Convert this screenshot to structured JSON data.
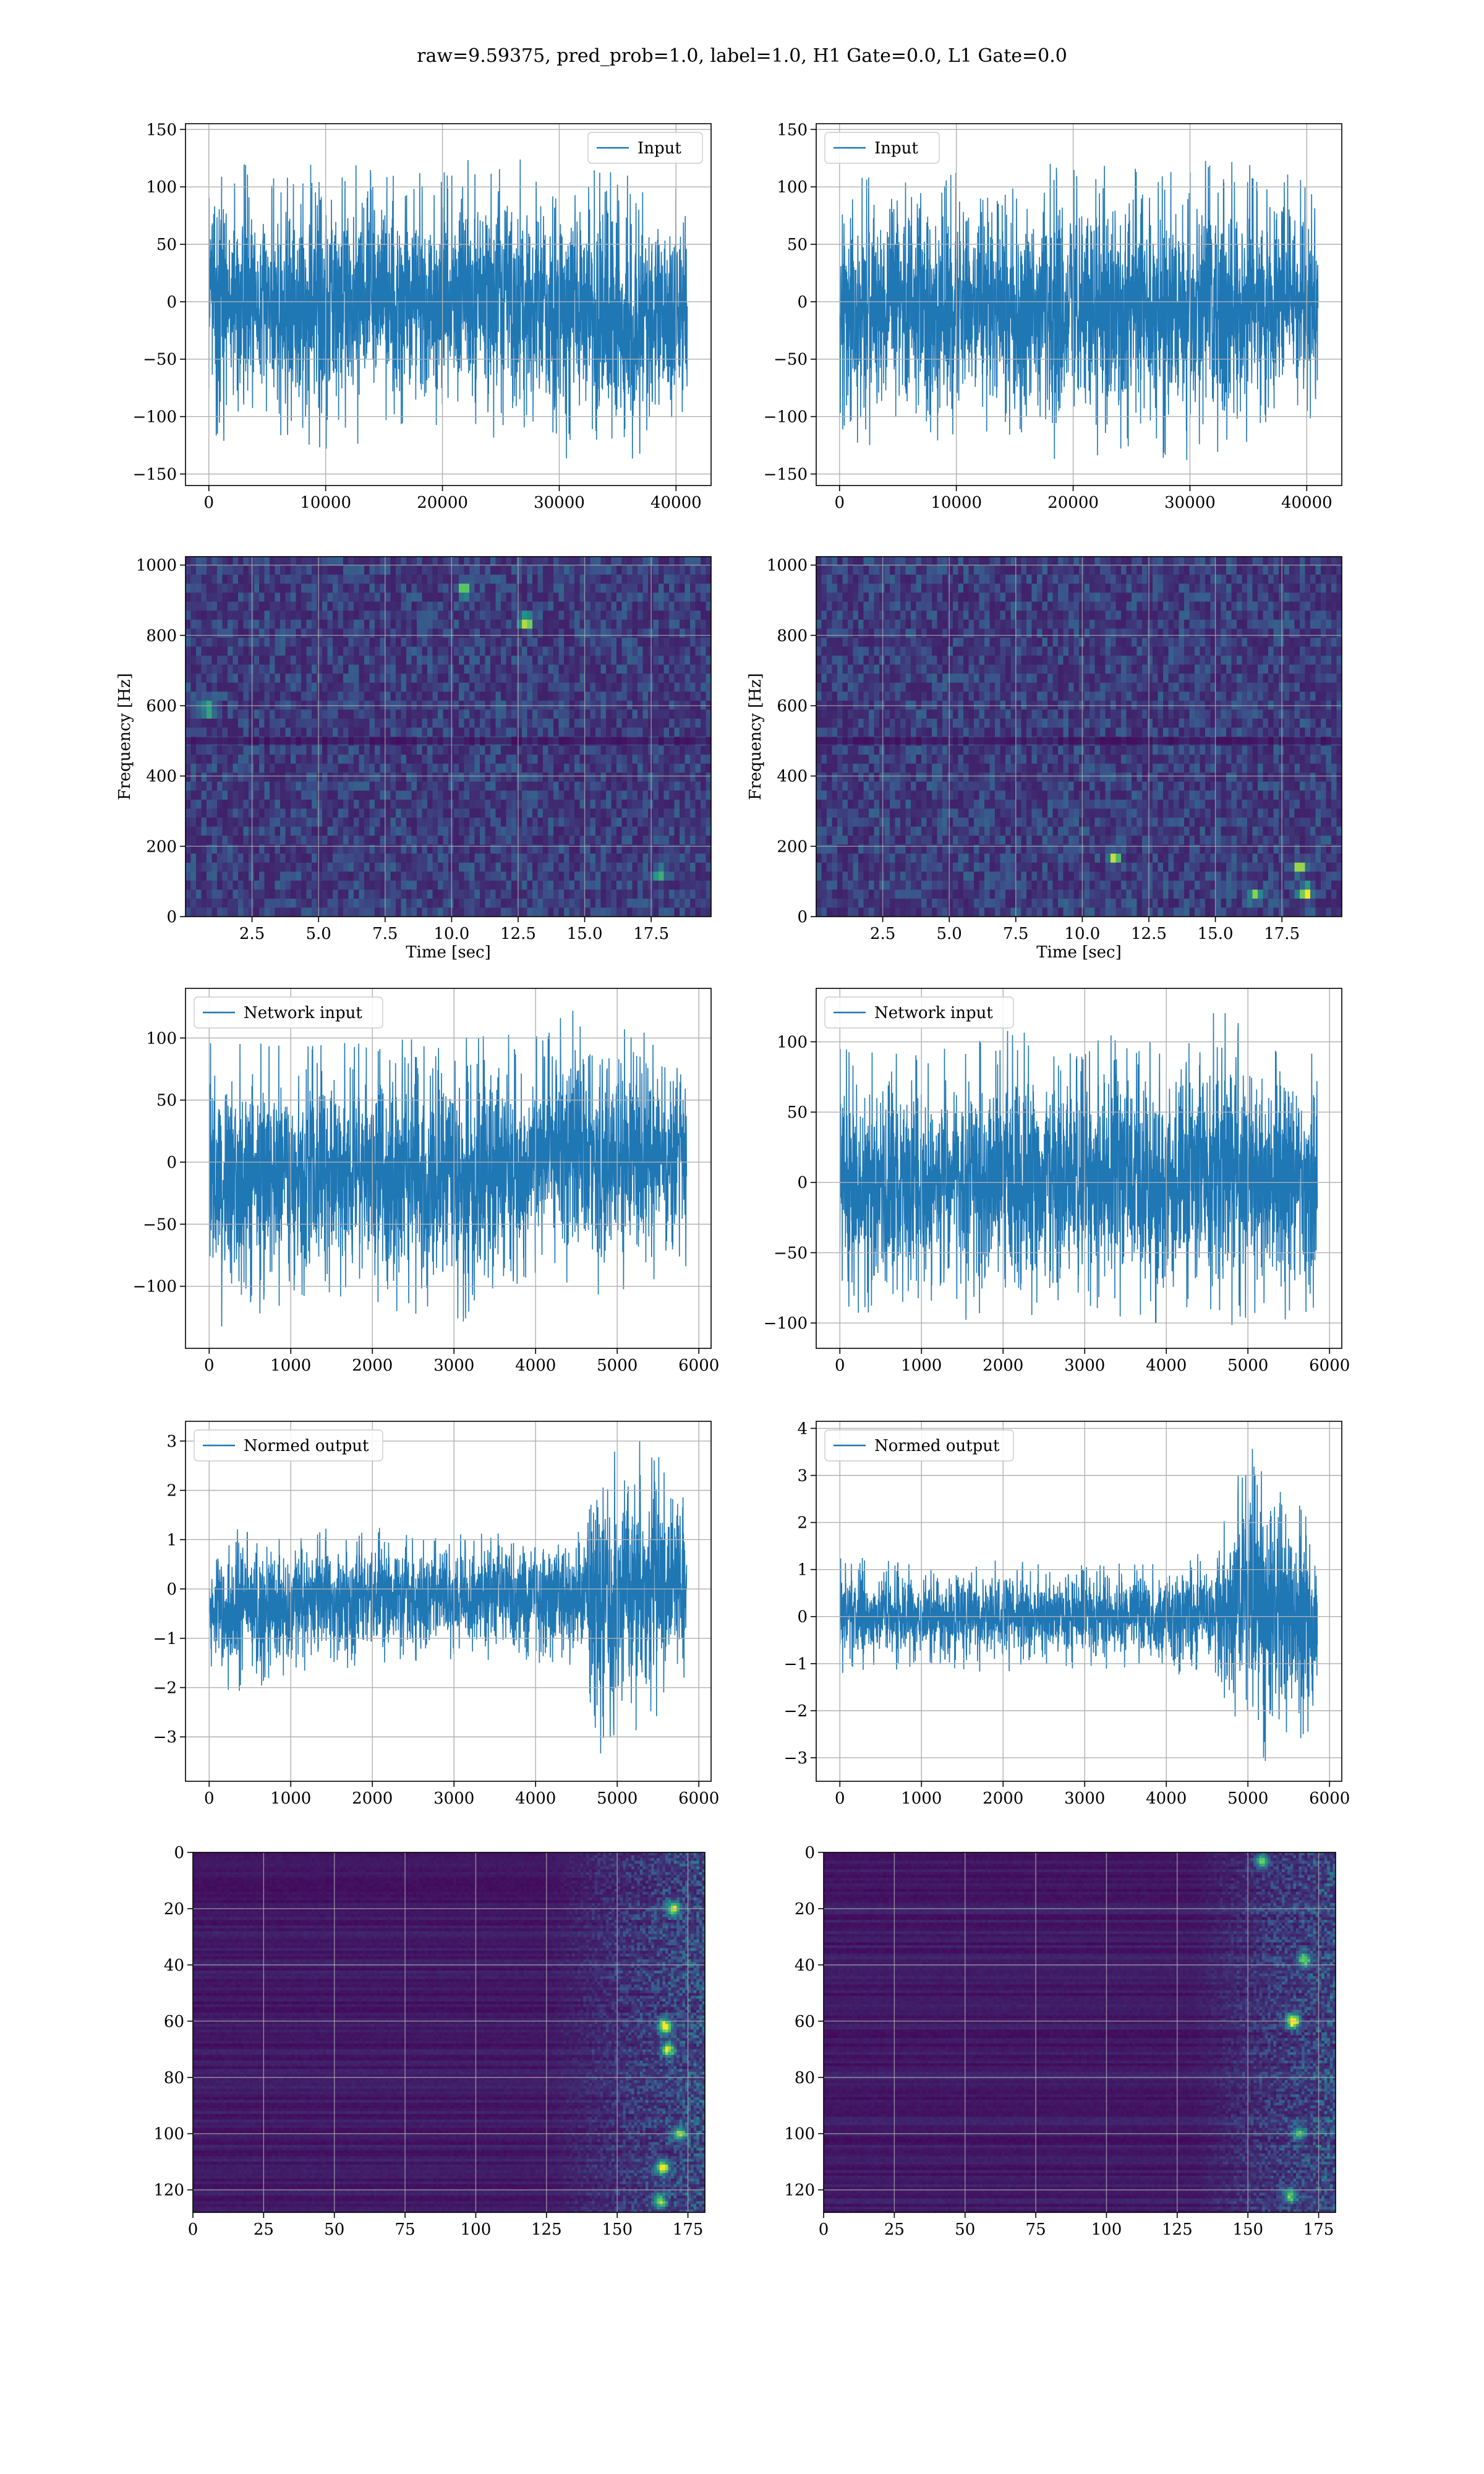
{
  "figure": {
    "suptitle": "raw=9.59375, pred_prob=1.0, label=1.0, H1 Gate=0.0, L1 Gate=0.0"
  },
  "colors": {
    "line": "#1f77b4",
    "grid": "#b0b0b0",
    "viridis_low": "#440154",
    "viridis_mid": "#21918c",
    "viridis_high": "#fde725"
  },
  "chart_data": [
    {
      "id": "h1-input",
      "type": "line",
      "xlabel": "",
      "ylabel": "",
      "legend": "Input",
      "legend_loc": "upper right",
      "grid": true,
      "xlim": [
        -2000,
        43000
      ],
      "ylim": [
        -160,
        155
      ],
      "xticks": [
        0,
        10000,
        20000,
        30000,
        40000
      ],
      "yticks": [
        -150,
        -100,
        -50,
        0,
        50,
        100,
        150
      ],
      "series": [
        {
          "name": "Input",
          "x_range": [
            0,
            40960
          ],
          "n_points": 40960,
          "envelope": {
            "x": [
              0,
              5000,
              10000,
              15000,
              20000,
              25000,
              30000,
              35000,
              40960
            ],
            "upper": [
              134,
              110,
              125,
              120,
              112,
              138,
              118,
              112,
              96
            ],
            "lower": [
              -130,
              -115,
              -128,
              -120,
              -108,
              -122,
              -135,
              -145,
              -105
            ]
          }
        }
      ]
    },
    {
      "id": "l1-input",
      "type": "line",
      "xlabel": "",
      "ylabel": "",
      "legend": "Input",
      "legend_loc": "upper left",
      "grid": true,
      "xlim": [
        -2000,
        43000
      ],
      "ylim": [
        -160,
        155
      ],
      "xticks": [
        0,
        10000,
        20000,
        30000,
        40000
      ],
      "yticks": [
        -150,
        -100,
        -50,
        0,
        50,
        100,
        150
      ],
      "series": [
        {
          "name": "Input",
          "x_range": [
            0,
            40960
          ],
          "n_points": 40960,
          "envelope": {
            "x": [
              0,
              5000,
              10000,
              15000,
              20000,
              25000,
              30000,
              35000,
              40960
            ],
            "upper": [
              115,
              120,
              116,
              118,
              122,
              115,
              126,
              120,
              105
            ],
            "lower": [
              -132,
              -118,
              -122,
              -130,
              -140,
              -125,
              -145,
              -128,
              -110
            ]
          }
        }
      ]
    },
    {
      "id": "h1-spectrogram",
      "type": "heatmap",
      "xlabel": "Time [sec]",
      "ylabel": "Frequency [Hz]",
      "grid": true,
      "xlim": [
        0,
        19.75
      ],
      "ylim": [
        0,
        1024
      ],
      "xticks": [
        2.5,
        5.0,
        7.5,
        10.0,
        12.5,
        15.0,
        17.5
      ],
      "yticks": [
        0,
        200,
        400,
        600,
        800,
        1000
      ],
      "colormap": "viridis",
      "rows": 40,
      "cols": 100,
      "seed": 3,
      "hotspots": [
        [
          12.8,
          840,
          0.9
        ],
        [
          10.5,
          930,
          0.7
        ],
        [
          17.8,
          120,
          0.55
        ],
        [
          0.8,
          590,
          0.55
        ]
      ]
    },
    {
      "id": "l1-spectrogram",
      "type": "heatmap",
      "xlabel": "Time [sec]",
      "ylabel": "Frequency [Hz]",
      "grid": true,
      "xlim": [
        0,
        19.75
      ],
      "ylim": [
        0,
        1024
      ],
      "xticks": [
        2.5,
        5.0,
        7.5,
        10.0,
        12.5,
        15.0,
        17.5
      ],
      "yticks": [
        0,
        200,
        400,
        600,
        800,
        1000
      ],
      "colormap": "viridis",
      "rows": 40,
      "cols": 100,
      "seed": 7,
      "hotspots": [
        [
          18.4,
          70,
          1.0
        ],
        [
          18.2,
          140,
          0.8
        ],
        [
          11.2,
          170,
          0.7
        ],
        [
          16.5,
          60,
          0.6
        ]
      ]
    },
    {
      "id": "h1-network-input",
      "type": "line",
      "xlabel": "",
      "ylabel": "",
      "legend": "Network input",
      "legend_loc": "upper left",
      "grid": true,
      "xlim": [
        -290,
        6150
      ],
      "ylim": [
        -150,
        140
      ],
      "xticks": [
        0,
        1000,
        2000,
        3000,
        4000,
        5000,
        6000
      ],
      "yticks": [
        -100,
        -50,
        0,
        50,
        100
      ],
      "series": [
        {
          "name": "Network input",
          "x_range": [
            0,
            5850
          ],
          "n_points": 5850,
          "envelope": {
            "x": [
              0,
              1000,
              2000,
              3000,
              4000,
              4500,
              5000,
              5850
            ],
            "upper": [
              105,
              92,
              98,
              100,
              104,
              124,
              110,
              95
            ],
            "lower": [
              -138,
              -112,
              -115,
              -132,
              -100,
              -105,
              -108,
              -88
            ]
          }
        }
      ]
    },
    {
      "id": "l1-network-input",
      "type": "line",
      "xlabel": "",
      "ylabel": "",
      "legend": "Network input",
      "legend_loc": "upper left",
      "grid": true,
      "xlim": [
        -290,
        6150
      ],
      "ylim": [
        -118,
        138
      ],
      "xticks": [
        0,
        1000,
        2000,
        3000,
        4000,
        5000,
        6000
      ],
      "yticks": [
        -100,
        -50,
        0,
        50,
        100
      ],
      "series": [
        {
          "name": "Network input",
          "x_range": [
            0,
            5850
          ],
          "n_points": 5850,
          "envelope": {
            "x": [
              0,
              1000,
              2000,
              3000,
              4000,
              5000,
              5850
            ],
            "upper": [
              95,
              90,
              108,
              102,
              110,
              132,
              88
            ],
            "lower": [
              -105,
              -95,
              -100,
              -98,
              -100,
              -106,
              -90
            ]
          }
        }
      ]
    },
    {
      "id": "h1-normed-output",
      "type": "line",
      "xlabel": "",
      "ylabel": "",
      "legend": "Normed output",
      "legend_loc": "upper left",
      "grid": true,
      "xlim": [
        -290,
        6150
      ],
      "ylim": [
        -3.9,
        3.4
      ],
      "xticks": [
        0,
        1000,
        2000,
        3000,
        4000,
        5000,
        6000
      ],
      "yticks": [
        -3,
        -2,
        -1,
        0,
        1,
        2,
        3
      ],
      "series": [
        {
          "name": "Normed output",
          "x_range": [
            0,
            5850
          ],
          "n_points": 5850,
          "envelope": {
            "x": [
              0,
              1000,
              2000,
              3000,
              4000,
              4600,
              4800,
              5200,
              5850
            ],
            "upper": [
              1.3,
              1.2,
              1.25,
              1.1,
              1.2,
              1.3,
              2.8,
              3.1,
              2.2
            ],
            "lower": [
              -2.3,
              -1.8,
              -1.6,
              -1.5,
              -1.5,
              -1.6,
              -3.6,
              -3.0,
              -2.2
            ]
          }
        }
      ]
    },
    {
      "id": "l1-normed-output",
      "type": "line",
      "xlabel": "",
      "ylabel": "",
      "legend": "Normed output",
      "legend_loc": "upper left",
      "grid": true,
      "xlim": [
        -290,
        6150
      ],
      "ylim": [
        -3.5,
        4.15
      ],
      "xticks": [
        0,
        1000,
        2000,
        3000,
        4000,
        5000,
        6000
      ],
      "yticks": [
        -3,
        -2,
        -1,
        0,
        1,
        2,
        3,
        4
      ],
      "series": [
        {
          "name": "Normed output",
          "x_range": [
            0,
            5850
          ],
          "n_points": 5850,
          "envelope": {
            "x": [
              0,
              1000,
              2000,
              3000,
              4000,
              4600,
              5000,
              5300,
              5850
            ],
            "upper": [
              1.3,
              1.1,
              1.2,
              1.1,
              1.2,
              1.4,
              3.7,
              3.8,
              1.9
            ],
            "lower": [
              -1.2,
              -1.1,
              -1.2,
              -1.1,
              -1.2,
              -1.3,
              -2.9,
              -3.3,
              -2.5
            ]
          }
        }
      ]
    },
    {
      "id": "h1-features",
      "type": "heatmap",
      "xlabel": "",
      "ylabel": "",
      "grid": true,
      "xlim": [
        0,
        181
      ],
      "ylim": [
        128,
        0
      ],
      "xticks": [
        0,
        25,
        50,
        75,
        100,
        125,
        150,
        175
      ],
      "yticks": [
        0,
        20,
        40,
        60,
        80,
        100,
        120
      ],
      "colormap": "viridis",
      "rows": 128,
      "cols": 181,
      "seed": 11,
      "active_from": 125,
      "hotspots": [
        [
          167,
          62,
          1.0
        ],
        [
          166,
          112,
          0.9
        ],
        [
          170,
          20,
          0.8
        ],
        [
          168,
          70,
          0.75
        ],
        [
          172,
          100,
          0.7
        ],
        [
          165,
          124,
          0.7
        ]
      ]
    },
    {
      "id": "l1-features",
      "type": "heatmap",
      "xlabel": "",
      "ylabel": "",
      "grid": true,
      "xlim": [
        0,
        181
      ],
      "ylim": [
        128,
        0
      ],
      "xticks": [
        0,
        25,
        50,
        75,
        100,
        125,
        150,
        175
      ],
      "yticks": [
        0,
        20,
        40,
        60,
        80,
        100,
        120
      ],
      "colormap": "viridis",
      "rows": 128,
      "cols": 181,
      "seed": 19,
      "active_from": 130,
      "hotspots": [
        [
          166,
          60,
          1.0
        ],
        [
          155,
          3,
          0.7
        ],
        [
          170,
          38,
          0.6
        ],
        [
          165,
          122,
          0.6
        ],
        [
          168,
          100,
          0.55
        ]
      ]
    }
  ]
}
